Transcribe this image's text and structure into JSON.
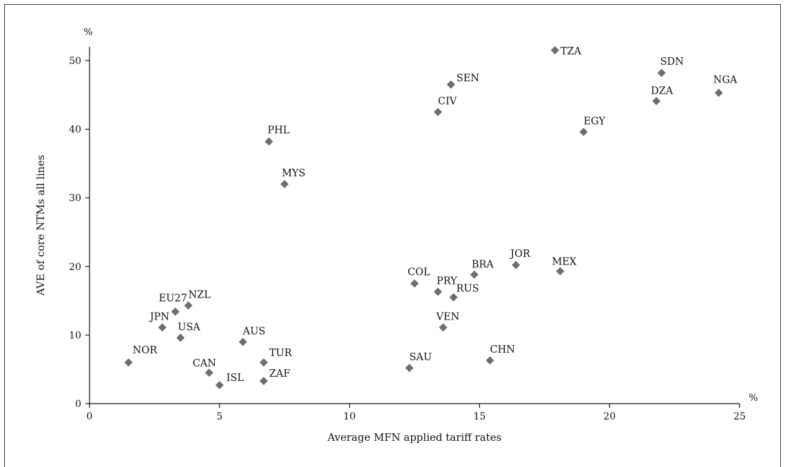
{
  "chart_data": {
    "type": "scatter",
    "xlabel": "Average MFN applied tariff rates",
    "ylabel": "AVE of core NTMs all lines",
    "x_unit": "%",
    "y_unit": "%",
    "xlim": [
      0,
      25
    ],
    "ylim": [
      0,
      52
    ],
    "xticks": [
      0,
      5,
      10,
      15,
      20,
      25
    ],
    "yticks": [
      0,
      10,
      20,
      30,
      40,
      50
    ],
    "grid": false,
    "marker_color": "#6e6e6e",
    "points": [
      {
        "label": "TZA",
        "x": 17.9,
        "y": 51.5
      },
      {
        "label": "SDN",
        "x": 22.0,
        "y": 48.2
      },
      {
        "label": "NGA",
        "x": 24.2,
        "y": 45.3
      },
      {
        "label": "DZA",
        "x": 21.8,
        "y": 44.1
      },
      {
        "label": "SEN",
        "x": 13.9,
        "y": 46.5
      },
      {
        "label": "CIV",
        "x": 13.4,
        "y": 42.5
      },
      {
        "label": "EGY",
        "x": 19.0,
        "y": 39.6
      },
      {
        "label": "PHL",
        "x": 6.9,
        "y": 38.2
      },
      {
        "label": "MYS",
        "x": 7.5,
        "y": 32.0
      },
      {
        "label": "JOR",
        "x": 16.4,
        "y": 20.2
      },
      {
        "label": "MEX",
        "x": 18.1,
        "y": 19.3
      },
      {
        "label": "BRA",
        "x": 14.8,
        "y": 18.8
      },
      {
        "label": "COL",
        "x": 12.5,
        "y": 17.5
      },
      {
        "label": "PRY",
        "x": 13.4,
        "y": 16.3
      },
      {
        "label": "RUS",
        "x": 14.0,
        "y": 15.5
      },
      {
        "label": "VEN",
        "x": 13.6,
        "y": 11.1
      },
      {
        "label": "CHN",
        "x": 15.4,
        "y": 6.3
      },
      {
        "label": "SAU",
        "x": 12.3,
        "y": 5.2
      },
      {
        "label": "NZL",
        "x": 3.8,
        "y": 14.3
      },
      {
        "label": "EU27",
        "x": 3.3,
        "y": 13.4
      },
      {
        "label": "JPN",
        "x": 2.8,
        "y": 11.1
      },
      {
        "label": "USA",
        "x": 3.5,
        "y": 9.6
      },
      {
        "label": "AUS",
        "x": 5.9,
        "y": 9.0
      },
      {
        "label": "NOR",
        "x": 1.5,
        "y": 6.0
      },
      {
        "label": "TUR",
        "x": 6.7,
        "y": 6.0
      },
      {
        "label": "CAN",
        "x": 4.6,
        "y": 4.5
      },
      {
        "label": "ZAF",
        "x": 6.7,
        "y": 3.3
      },
      {
        "label": "ISL",
        "x": 5.0,
        "y": 2.7
      }
    ]
  }
}
